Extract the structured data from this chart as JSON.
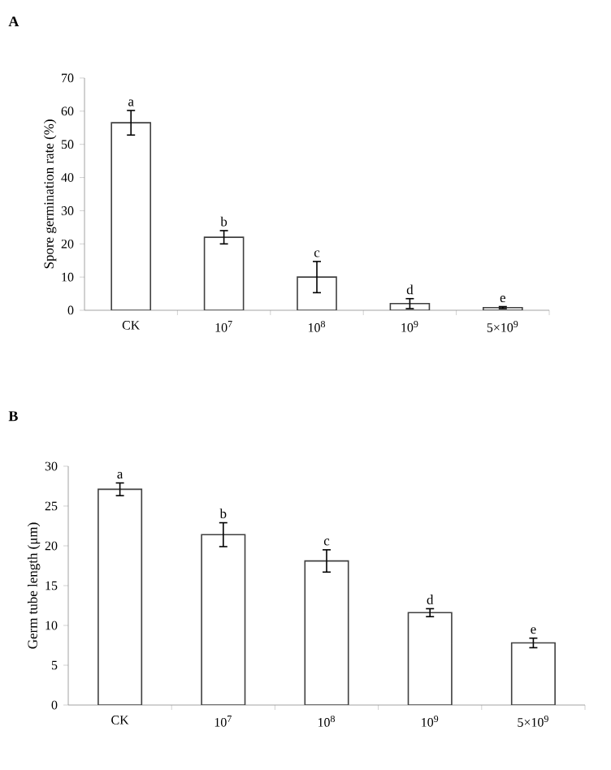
{
  "chart_data": [
    {
      "type": "bar",
      "title": "A",
      "ylabel": "Spore germination rate (%)",
      "categories": [
        "CK",
        "10$^{7}$",
        "10$^{8}$",
        "10$^{9}$",
        "5×10$^{9}$"
      ],
      "values": [
        56.5,
        22,
        10,
        2,
        0.8
      ],
      "errors": [
        3.7,
        2,
        4.7,
        1.5,
        0.3
      ],
      "color": "#ffffff",
      "ylim": [
        0,
        70
      ],
      "yticks": [
        0,
        10,
        20,
        30,
        40,
        50,
        60,
        70
      ],
      "grid": false,
      "annotations": [
        {
          "text": "a",
          "x": "CK",
          "y": 60.2
        },
        {
          "text": "b",
          "x": "10$^{7}$",
          "y": 24
        },
        {
          "text": "c",
          "x": "10$^{8}$",
          "y": 14.7
        },
        {
          "text": "d",
          "x": "10$^{9}$",
          "y": 3.5
        },
        {
          "text": "e",
          "x": "5×10$^{9}$",
          "y": 1.1
        }
      ]
    },
    {
      "type": "bar",
      "title": "B",
      "ylabel": "Germ tube length (μm)",
      "categories": [
        "CK",
        "10$^{7}$",
        "10$^{8}$",
        "10$^{9}$",
        "5×10$^{9}$"
      ],
      "values": [
        27.1,
        21.4,
        18.1,
        11.6,
        7.8
      ],
      "errors": [
        0.8,
        1.5,
        1.4,
        0.5,
        0.6
      ],
      "color": "#ffffff",
      "ylim": [
        0,
        30
      ],
      "yticks": [
        0,
        5,
        10,
        15,
        20,
        25,
        30
      ],
      "grid": false,
      "annotations": [
        {
          "text": "a",
          "x": "CK",
          "y": 27.9
        },
        {
          "text": "b",
          "x": "10$^{7}$",
          "y": 22.9
        },
        {
          "text": "c",
          "x": "10$^{8}$",
          "y": 19.5
        },
        {
          "text": "d",
          "x": "10$^{9}$",
          "y": 12.1
        },
        {
          "text": "e",
          "x": "5×10$^{9}$",
          "y": 8.4
        }
      ]
    }
  ]
}
